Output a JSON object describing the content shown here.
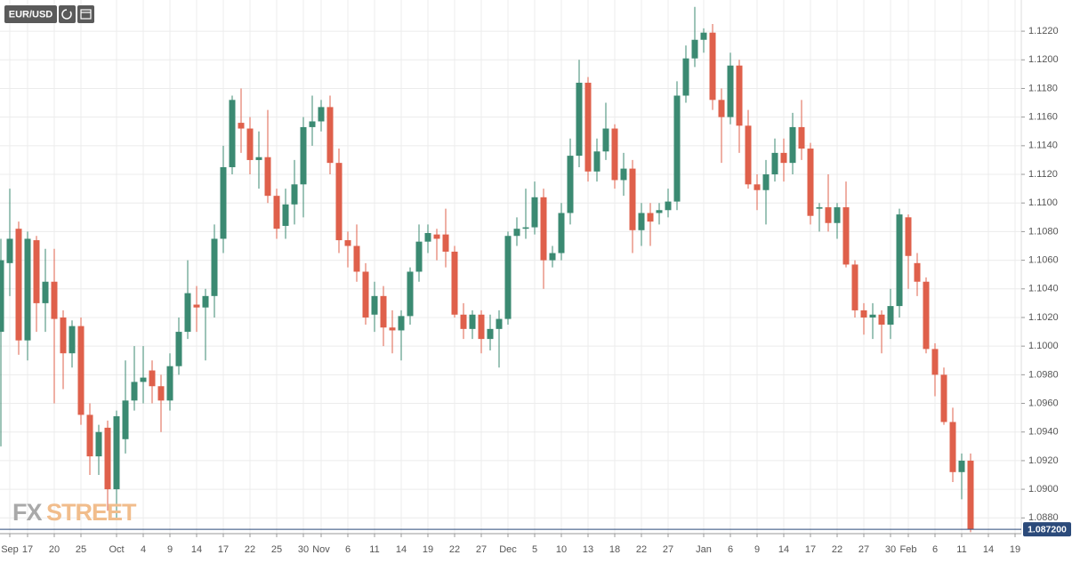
{
  "chart_data": {
    "type": "candlestick",
    "symbol": "EUR/USD",
    "watermark": {
      "prefix": "FX",
      "suffix": "STREET"
    },
    "up_color": "#3b8a72",
    "down_color": "#df604b",
    "grid": true,
    "last_price": {
      "value": 1.0872,
      "label": "1.087200"
    },
    "ylim": [
      1.0869,
      1.12418
    ],
    "yticks": [
      {
        "value": 1.088,
        "label": "1.0880"
      },
      {
        "value": 1.09,
        "label": "1.0900"
      },
      {
        "value": 1.092,
        "label": "1.0920"
      },
      {
        "value": 1.094,
        "label": "1.0940"
      },
      {
        "value": 1.096,
        "label": "1.0960"
      },
      {
        "value": 1.098,
        "label": "1.0980"
      },
      {
        "value": 1.1,
        "label": "1.1000"
      },
      {
        "value": 1.102,
        "label": "1.1020"
      },
      {
        "value": 1.104,
        "label": "1.1040"
      },
      {
        "value": 1.106,
        "label": "1.1060"
      },
      {
        "value": 1.108,
        "label": "1.1080"
      },
      {
        "value": 1.11,
        "label": "1.1100"
      },
      {
        "value": 1.112,
        "label": "1.1120"
      },
      {
        "value": 1.114,
        "label": "1.1140"
      },
      {
        "value": 1.116,
        "label": "1.1160"
      },
      {
        "value": 1.118,
        "label": "1.1180"
      },
      {
        "value": 1.12,
        "label": "1.1200"
      },
      {
        "value": 1.122,
        "label": "1.1220"
      }
    ],
    "categories": [
      null,
      "Sep",
      null,
      "17",
      null,
      null,
      "20",
      null,
      null,
      "25",
      null,
      null,
      null,
      "Oct",
      null,
      null,
      "4",
      null,
      null,
      "9",
      null,
      null,
      "14",
      null,
      null,
      "17",
      null,
      null,
      "22",
      null,
      null,
      "25",
      null,
      null,
      "30",
      null,
      "Nov",
      null,
      null,
      "6",
      null,
      null,
      "11",
      null,
      null,
      "14",
      null,
      null,
      "19",
      null,
      null,
      "22",
      null,
      null,
      "27",
      null,
      null,
      "Dec",
      null,
      null,
      "5",
      null,
      null,
      "10",
      null,
      null,
      "13",
      null,
      null,
      "18",
      null,
      null,
      "22",
      null,
      null,
      "27",
      null,
      null,
      null,
      "Jan",
      null,
      null,
      "6",
      null,
      null,
      "9",
      null,
      null,
      "14",
      null,
      null,
      "17",
      null,
      null,
      "22",
      null,
      null,
      "27",
      null,
      null,
      "30",
      null,
      "Feb",
      null,
      null,
      "6",
      null,
      null,
      "11",
      null,
      null,
      "14",
      null,
      null,
      "19"
    ],
    "open": [
      1.101,
      1.1058,
      1.1082,
      1.1004,
      1.1074,
      1.103,
      1.1045,
      1.102,
      1.0995,
      1.1014,
      1.0952,
      1.0923,
      1.0943,
      1.09,
      1.0935,
      1.0962,
      1.0975,
      1.0983,
      1.0972,
      1.0962,
      1.0986,
      1.101,
      1.1029,
      1.1027,
      1.1035,
      1.1075,
      1.1125,
      1.1156,
      1.1152,
      1.113,
      1.1132,
      1.1105,
      1.1084,
      1.1099,
      1.1113,
      1.1153,
      1.1157,
      1.1167,
      1.1128,
      1.1074,
      1.107,
      1.1052,
      1.1022,
      1.1035,
      1.1013,
      1.1011,
      1.1021,
      1.1052,
      1.1073,
      1.1078,
      1.1078,
      1.1066,
      1.1022,
      1.1012,
      1.1022,
      1.1005,
      1.1012,
      1.1019,
      1.1077,
      1.1082,
      1.1083,
      1.1104,
      1.106,
      1.1065,
      1.1093,
      1.1133,
      1.1184,
      1.1122,
      1.1136,
      1.1152,
      1.1116,
      1.1124,
      1.1081,
      1.1093,
      1.1093,
      1.1095,
      1.1101,
      1.1175,
      1.1201,
      1.1214,
      1.1219,
      1.1172,
      1.116,
      1.1196,
      1.1154,
      1.1113,
      1.1109,
      1.112,
      1.1135,
      1.1128,
      1.1153,
      1.1138,
      1.1096,
      1.1097,
      1.1086,
      1.1097,
      1.1057,
      1.1025,
      1.102,
      1.1022,
      1.1015,
      1.1028,
      1.109,
      1.1058,
      1.1045,
      1.0998,
      1.098,
      1.0947,
      1.0912,
      1.092,
      null,
      null,
      null,
      null,
      null
    ],
    "high": [
      1.1075,
      1.111,
      1.1087,
      1.108,
      1.1077,
      1.1068,
      1.1068,
      1.1025,
      1.1018,
      1.102,
      1.096,
      1.0945,
      1.0948,
      1.0955,
      1.099,
      1.1,
      1.1,
      1.099,
      1.098,
      1.0995,
      1.102,
      1.106,
      1.1042,
      1.104,
      1.1085,
      1.114,
      1.1175,
      1.118,
      1.116,
      1.115,
      1.1165,
      1.111,
      1.111,
      1.113,
      1.116,
      1.1175,
      1.1172,
      1.1175,
      1.1138,
      1.108,
      1.1085,
      1.1058,
      1.1045,
      1.1042,
      1.1025,
      1.1025,
      1.1055,
      1.1085,
      1.1085,
      1.1082,
      1.1096,
      1.107,
      1.103,
      1.1025,
      1.1025,
      1.1022,
      1.1025,
      1.108,
      1.109,
      1.111,
      1.1115,
      1.111,
      1.107,
      1.11,
      1.1145,
      1.12,
      1.1188,
      1.1145,
      1.117,
      1.1155,
      1.1135,
      1.113,
      1.11,
      1.11,
      1.11,
      1.111,
      1.1185,
      1.121,
      1.1237,
      1.1222,
      1.1225,
      1.118,
      1.1205,
      1.12,
      1.1165,
      1.112,
      1.113,
      1.1145,
      1.1145,
      1.1163,
      1.1172,
      1.1142,
      1.11,
      1.112,
      1.11,
      1.1115,
      1.106,
      1.103,
      1.103,
      1.1025,
      1.104,
      1.1096,
      1.1092,
      1.1065,
      1.1048,
      1.1002,
      1.0985,
      1.0957,
      1.0925,
      1.0925,
      null,
      null,
      null,
      null,
      null
    ],
    "low": [
      1.093,
      1.1035,
      1.0994,
      1.099,
      1.101,
      1.101,
      1.096,
      1.097,
      1.0985,
      1.0945,
      1.091,
      1.091,
      1.0885,
      1.088,
      1.0925,
      1.0955,
      1.096,
      1.096,
      1.094,
      1.0955,
      1.098,
      1.1005,
      1.101,
      1.099,
      1.102,
      1.1065,
      1.112,
      1.1135,
      1.112,
      1.111,
      1.11,
      1.1075,
      1.1075,
      1.1085,
      1.109,
      1.114,
      1.115,
      1.112,
      1.1065,
      1.1055,
      1.1045,
      1.1015,
      1.101,
      1.1,
      1.0995,
      1.099,
      1.1015,
      1.1045,
      1.1065,
      1.106,
      1.1055,
      1.102,
      1.1005,
      1.1005,
      1.0995,
      1.0997,
      1.0985,
      1.1015,
      1.107,
      1.1075,
      1.1078,
      1.104,
      1.1055,
      1.106,
      1.1085,
      1.1125,
      1.1115,
      1.1115,
      1.113,
      1.111,
      1.1105,
      1.1065,
      1.107,
      1.107,
      1.1085,
      1.109,
      1.1095,
      1.117,
      1.1195,
      1.1205,
      1.1165,
      1.1128,
      1.1155,
      1.1135,
      1.111,
      1.1095,
      1.1085,
      1.1115,
      1.1115,
      1.112,
      1.113,
      1.1085,
      1.108,
      1.108,
      1.1075,
      1.1055,
      1.102,
      1.1008,
      1.1005,
      1.0995,
      1.1005,
      1.102,
      1.104,
      1.1035,
      1.0995,
      1.0965,
      1.0945,
      1.0905,
      1.0893,
      1.087,
      null,
      null,
      null,
      null,
      null
    ],
    "close": [
      1.106,
      1.1075,
      1.1004,
      1.1075,
      1.103,
      1.1045,
      1.1019,
      1.0995,
      1.1014,
      1.0952,
      1.0923,
      1.094,
      1.09,
      1.0951,
      1.0962,
      1.0975,
      1.0978,
      1.0972,
      1.0962,
      1.0986,
      1.101,
      1.1037,
      1.1027,
      1.1035,
      1.1075,
      1.1125,
      1.1172,
      1.1152,
      1.113,
      1.1132,
      1.1105,
      1.1082,
      1.1099,
      1.1113,
      1.1153,
      1.1157,
      1.1167,
      1.1128,
      1.1074,
      1.107,
      1.1052,
      1.102,
      1.1035,
      1.1013,
      1.1011,
      1.1021,
      1.1052,
      1.1073,
      1.1079,
      1.1075,
      1.1066,
      1.1022,
      1.1012,
      1.1022,
      1.1005,
      1.1012,
      1.1019,
      1.1077,
      1.1082,
      1.1083,
      1.1104,
      1.106,
      1.1065,
      1.1093,
      1.1133,
      1.1184,
      1.1122,
      1.1136,
      1.1152,
      1.1116,
      1.1124,
      1.1081,
      1.1093,
      1.1087,
      1.1095,
      1.1101,
      1.1175,
      1.1201,
      1.1214,
      1.1219,
      1.1172,
      1.116,
      1.1196,
      1.1154,
      1.1113,
      1.1109,
      1.112,
      1.1135,
      1.1128,
      1.1153,
      1.1138,
      1.1091,
      1.1097,
      1.1086,
      1.1097,
      1.1057,
      1.1025,
      1.102,
      1.1022,
      1.1015,
      1.1028,
      1.1092,
      1.1063,
      1.1045,
      1.0998,
      1.098,
      1.0947,
      1.0912,
      1.092,
      1.0872,
      null,
      null,
      null,
      null,
      null
    ]
  }
}
